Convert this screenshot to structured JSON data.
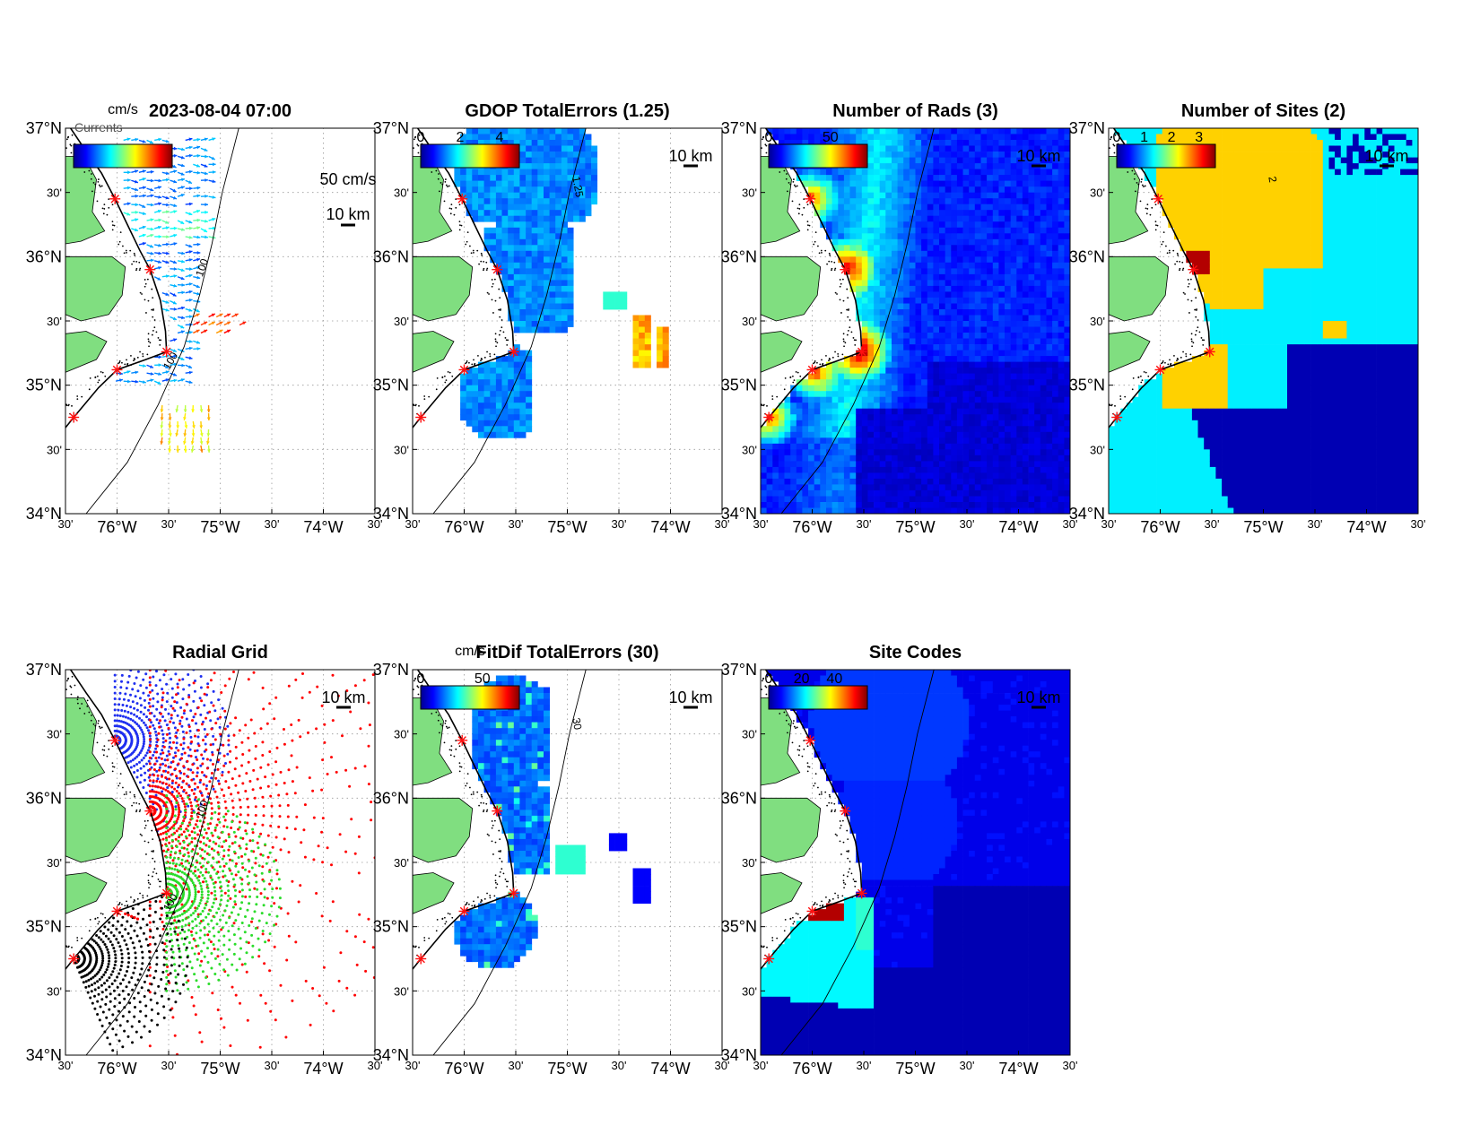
{
  "figure": {
    "panels": [
      {
        "id": "currents",
        "title": "2023-08-04 07:00",
        "colorbar": {
          "ticks": [],
          "unit": "cm/s"
        },
        "scale_vector": "50 cm/s",
        "scale_km": "10 km",
        "stamp": "Currents",
        "isobath": "100",
        "show_xlabels": true
      },
      {
        "id": "gdop",
        "title": "GDOP TotalErrors (1.25)",
        "colorbar": {
          "ticks": [
            "0",
            "2",
            "4"
          ],
          "unit": ""
        },
        "scale_km": "10 km",
        "contour_label": "1.25",
        "show_xlabels": true
      },
      {
        "id": "nrads",
        "title": "Number of Rads (3)",
        "colorbar": {
          "ticks": [
            "0",
            "50"
          ],
          "unit": ""
        },
        "scale_km": "10 km",
        "show_xlabels": true
      },
      {
        "id": "nsites",
        "title": "Number of Sites (2)",
        "colorbar": {
          "ticks": [
            "0",
            "1",
            "2",
            "3"
          ],
          "unit": ""
        },
        "scale_km": "10 km",
        "contour_label": "2",
        "show_xlabels": true
      },
      {
        "id": "radgrid",
        "title": "Radial Grid",
        "colorbar": null,
        "scale_km": "10 km",
        "isobath": "100",
        "show_xlabels": true
      },
      {
        "id": "fitdif",
        "title": "FitDif TotalErrors (30)",
        "colorbar": {
          "ticks": [
            "0",
            "50"
          ],
          "unit": "cm/s"
        },
        "scale_km": "10 km",
        "contour_label": "30",
        "show_xlabels": true
      },
      {
        "id": "sitecodes",
        "title": "Site Codes",
        "colorbar": {
          "ticks": [
            "0",
            "20",
            "40"
          ],
          "unit": ""
        },
        "scale_km": "10 km",
        "show_xlabels": true
      }
    ]
  },
  "chart_data": {
    "type": "heatmap",
    "map_extent": {
      "lon": [
        -76.5,
        -73.5
      ],
      "lat": [
        34.0,
        37.0
      ]
    },
    "y_ticks": [
      {
        "lat": 37.0,
        "label": "37°N"
      },
      {
        "lat": 36.5,
        "label": "30'"
      },
      {
        "lat": 36.0,
        "label": "36°N"
      },
      {
        "lat": 35.5,
        "label": "30'"
      },
      {
        "lat": 35.0,
        "label": "35°N"
      },
      {
        "lat": 34.5,
        "label": "30'"
      },
      {
        "lat": 34.0,
        "label": "34°N"
      }
    ],
    "x_ticks": [
      {
        "lon": -76.5,
        "label": "30'"
      },
      {
        "lon": -76.0,
        "label": "76°W"
      },
      {
        "lon": -75.5,
        "label": "30'"
      },
      {
        "lon": -75.0,
        "label": "75°W"
      },
      {
        "lon": -74.5,
        "label": "30'"
      },
      {
        "lon": -74.0,
        "label": "74°W"
      },
      {
        "lon": -73.5,
        "label": "30'"
      }
    ],
    "hf_radar_sites": [
      {
        "lon": -76.02,
        "lat": 36.45
      },
      {
        "lon": -75.68,
        "lat": 35.9
      },
      {
        "lon": -75.52,
        "lat": 35.26
      },
      {
        "lon": -76.0,
        "lat": 35.12
      },
      {
        "lon": -76.42,
        "lat": 34.75
      }
    ],
    "isobath_100m": [
      [
        -76.3,
        34.0
      ],
      [
        -75.9,
        34.4
      ],
      [
        -75.6,
        34.85
      ],
      [
        -75.35,
        35.3
      ],
      [
        -75.2,
        35.7
      ],
      [
        -75.08,
        36.1
      ],
      [
        -74.98,
        36.5
      ],
      [
        -74.82,
        37.0
      ]
    ],
    "radial_grid_colors": [
      "#1f2ff0",
      "#ff0000",
      "#2bdc2b",
      "#000000"
    ],
    "colormap": [
      "#00008f",
      "#0000ff",
      "#0080ff",
      "#00ffff",
      "#80ff80",
      "#ffff00",
      "#ff8000",
      "#ff0000",
      "#800000"
    ]
  }
}
